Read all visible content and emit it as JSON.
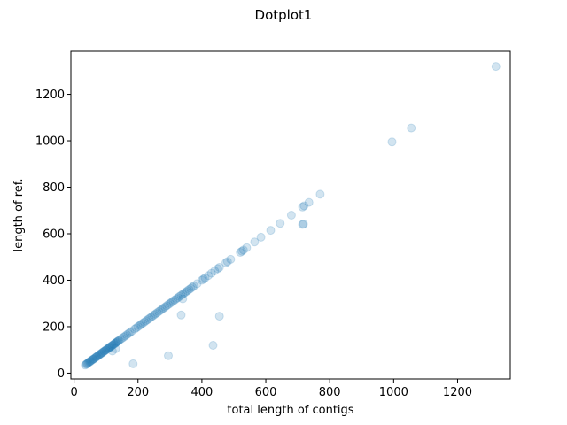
{
  "chart_data": {
    "type": "scatter",
    "title": "Dotplot1",
    "xlabel": "total length of contigs",
    "ylabel": "length of ref.",
    "xlim": [
      -10,
      1365
    ],
    "ylim": [
      -25,
      1385
    ],
    "xticks": [
      0,
      200,
      400,
      600,
      800,
      1000,
      1200
    ],
    "yticks": [
      0,
      200,
      400,
      600,
      800,
      1000,
      1200
    ],
    "grid": false,
    "marker_color": "#1f77b4",
    "marker_alpha": 0.2,
    "series": [
      {
        "points": [
          [
            35,
            35
          ],
          [
            38,
            38
          ],
          [
            40,
            40
          ],
          [
            42,
            42
          ],
          [
            45,
            45
          ],
          [
            48,
            48
          ],
          [
            50,
            50
          ],
          [
            52,
            52
          ],
          [
            55,
            55
          ],
          [
            58,
            58
          ],
          [
            60,
            60
          ],
          [
            62,
            62
          ],
          [
            65,
            65
          ],
          [
            68,
            68
          ],
          [
            70,
            70
          ],
          [
            72,
            72
          ],
          [
            75,
            75
          ],
          [
            78,
            78
          ],
          [
            80,
            80
          ],
          [
            83,
            83
          ],
          [
            85,
            85
          ],
          [
            88,
            88
          ],
          [
            90,
            90
          ],
          [
            93,
            93
          ],
          [
            95,
            95
          ],
          [
            98,
            98
          ],
          [
            100,
            100
          ],
          [
            103,
            103
          ],
          [
            105,
            105
          ],
          [
            108,
            108
          ],
          [
            110,
            110
          ],
          [
            113,
            113
          ],
          [
            115,
            115
          ],
          [
            118,
            118
          ],
          [
            120,
            120
          ],
          [
            123,
            123
          ],
          [
            125,
            125
          ],
          [
            128,
            128
          ],
          [
            130,
            130
          ],
          [
            133,
            133
          ],
          [
            135,
            135
          ],
          [
            138,
            138
          ],
          [
            140,
            140
          ],
          [
            145,
            145
          ],
          [
            150,
            150
          ],
          [
            155,
            155
          ],
          [
            160,
            160
          ],
          [
            165,
            165
          ],
          [
            170,
            170
          ],
          [
            175,
            175
          ],
          [
            180,
            180
          ],
          [
            190,
            190
          ],
          [
            195,
            195
          ],
          [
            200,
            200
          ],
          [
            205,
            205
          ],
          [
            210,
            210
          ],
          [
            215,
            215
          ],
          [
            220,
            220
          ],
          [
            225,
            225
          ],
          [
            230,
            230
          ],
          [
            235,
            235
          ],
          [
            240,
            240
          ],
          [
            245,
            245
          ],
          [
            250,
            250
          ],
          [
            255,
            255
          ],
          [
            260,
            260
          ],
          [
            265,
            265
          ],
          [
            270,
            270
          ],
          [
            275,
            275
          ],
          [
            280,
            280
          ],
          [
            285,
            285
          ],
          [
            290,
            290
          ],
          [
            295,
            295
          ],
          [
            300,
            300
          ],
          [
            305,
            305
          ],
          [
            310,
            310
          ],
          [
            315,
            315
          ],
          [
            320,
            320
          ],
          [
            325,
            325
          ],
          [
            330,
            330
          ],
          [
            335,
            335
          ],
          [
            340,
            340
          ],
          [
            345,
            345
          ],
          [
            350,
            350
          ],
          [
            355,
            355
          ],
          [
            360,
            360
          ],
          [
            365,
            365
          ],
          [
            370,
            370
          ],
          [
            375,
            375
          ],
          [
            385,
            385
          ],
          [
            400,
            400
          ],
          [
            405,
            405
          ],
          [
            410,
            410
          ],
          [
            420,
            420
          ],
          [
            430,
            430
          ],
          [
            440,
            440
          ],
          [
            450,
            450
          ],
          [
            455,
            455
          ],
          [
            475,
            475
          ],
          [
            480,
            480
          ],
          [
            490,
            490
          ],
          [
            520,
            520
          ],
          [
            525,
            525
          ],
          [
            530,
            530
          ],
          [
            540,
            540
          ],
          [
            565,
            565
          ],
          [
            585,
            585
          ],
          [
            615,
            615
          ],
          [
            645,
            645
          ],
          [
            680,
            680
          ],
          [
            715,
            715
          ],
          [
            720,
            720
          ],
          [
            735,
            735
          ],
          [
            770,
            770
          ],
          [
            715,
            640
          ],
          [
            718,
            642
          ],
          [
            995,
            995
          ],
          [
            1055,
            1055
          ],
          [
            1320,
            1320
          ],
          [
            185,
            40
          ],
          [
            295,
            75
          ],
          [
            435,
            120
          ],
          [
            455,
            245
          ],
          [
            335,
            250
          ],
          [
            340,
            320
          ],
          [
            120,
            95
          ],
          [
            130,
            105
          ]
        ]
      }
    ]
  }
}
